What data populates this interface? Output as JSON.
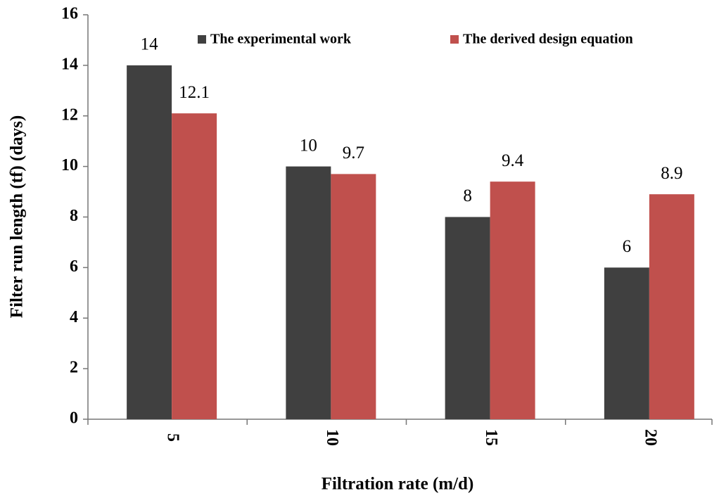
{
  "chart_data": {
    "type": "bar",
    "xlabel": "Filtration  rate (m/d)",
    "ylabel": "Filter run length (tf) (days)",
    "categories": [
      "5",
      "10",
      "15",
      "20"
    ],
    "series": [
      {
        "name": "The experimental work",
        "color": "#404040",
        "values": [
          14,
          10,
          8,
          6
        ]
      },
      {
        "name": "The derived design equation",
        "color": "#c0504d",
        "values": [
          12.1,
          9.7,
          9.4,
          8.9
        ]
      }
    ],
    "ylim": [
      0,
      16
    ],
    "yticks": [
      0,
      2,
      4,
      6,
      8,
      10,
      12,
      14,
      16
    ],
    "legend": "top"
  }
}
